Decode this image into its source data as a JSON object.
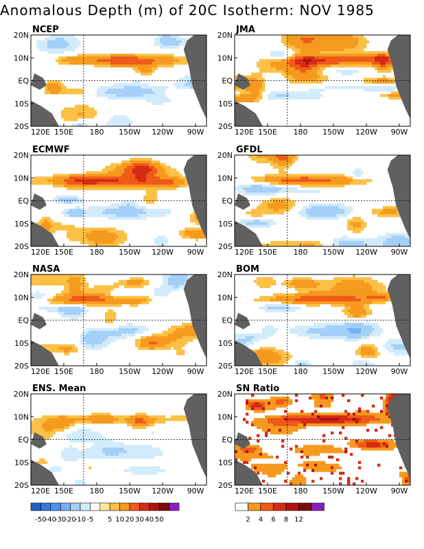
{
  "title": "Anomalous Depth (m) of 20C Isotherm: NOV 1985",
  "chart_data": {
    "type": "heatmap",
    "title": "Anomalous Depth (m) of 20C Isotherm: NOV 1985",
    "x_ticks": [
      "120E",
      "150E",
      "180",
      "150W",
      "120W",
      "90W"
    ],
    "y_ticks": [
      "20N",
      "10N",
      "EQ",
      "10S",
      "20S"
    ],
    "x_range": [
      "120E",
      "80W"
    ],
    "y_range": [
      "20S",
      "20N"
    ],
    "panels": [
      {
        "name": "NCEP",
        "seed": 11,
        "kind": "anom"
      },
      {
        "name": "JMA",
        "seed": 23,
        "kind": "anom"
      },
      {
        "name": "ECMWF",
        "seed": 37,
        "kind": "anom"
      },
      {
        "name": "GFDL",
        "seed": 41,
        "kind": "anom"
      },
      {
        "name": "NASA",
        "seed": 53,
        "kind": "anom"
      },
      {
        "name": "BOM",
        "seed": 67,
        "kind": "anom"
      },
      {
        "name": "ENS. Mean",
        "seed": 79,
        "kind": "mean"
      },
      {
        "name": "SN Ratio",
        "seed": 97,
        "kind": "snr"
      }
    ],
    "anomaly_colorbar": {
      "colors": [
        "#1f5fc8",
        "#2f7ae0",
        "#4a93ea",
        "#74b2f2",
        "#a4d0f7",
        "#d2ebfb",
        "#ffffff",
        "#fde79b",
        "#fbc046",
        "#f59a1e",
        "#ef5a19",
        "#d42b14",
        "#ad1410",
        "#7c0a0a",
        "#8a1cc0"
      ],
      "labels": [
        "-50",
        "-40",
        "-30",
        "-20",
        "-10",
        "-5",
        "5",
        "10",
        "20",
        "30",
        "40",
        "50"
      ]
    },
    "snr_colorbar": {
      "colors": [
        "#ffffff",
        "#f59a1e",
        "#ef5a19",
        "#d42b14",
        "#ad1410",
        "#7c0a0a",
        "#8a1cc0"
      ],
      "labels": [
        "2",
        "4",
        "6",
        "8",
        "12"
      ]
    },
    "land_color": "#606060"
  }
}
